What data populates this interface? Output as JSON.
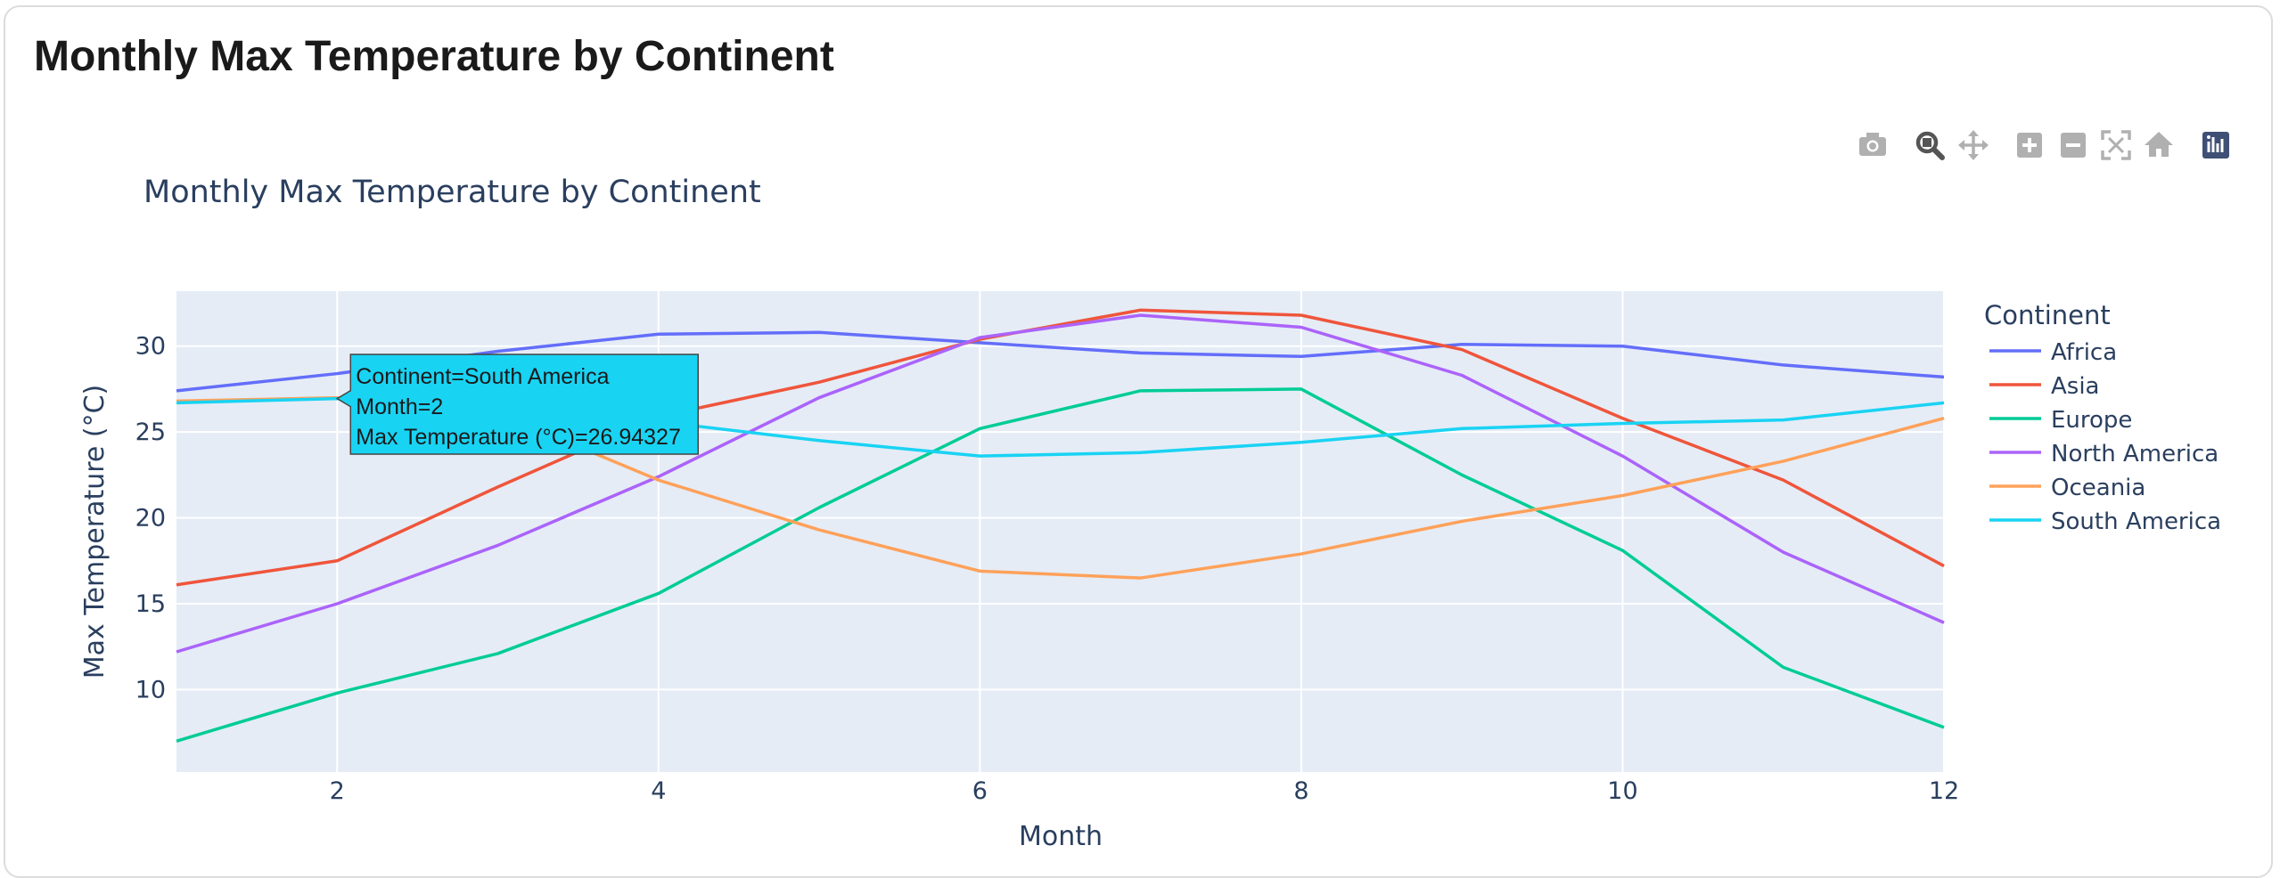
{
  "page": {
    "title": "Monthly Max Temperature by Continent"
  },
  "toolbar": {
    "buttons": [
      {
        "name": "camera-icon",
        "label": "Download plot as a png"
      },
      {
        "name": "zoom-icon",
        "label": "Zoom"
      },
      {
        "name": "pan-icon",
        "label": "Pan"
      },
      {
        "name": "zoom-in-icon",
        "label": "Zoom in"
      },
      {
        "name": "zoom-out-icon",
        "label": "Zoom out"
      },
      {
        "name": "autoscale-icon",
        "label": "Autoscale"
      },
      {
        "name": "reset-axes-icon",
        "label": "Reset axes"
      },
      {
        "name": "plotly-logo-icon",
        "label": "Produced with Plotly"
      }
    ]
  },
  "chart_data": {
    "type": "line",
    "title": "Monthly Max Temperature by Continent",
    "xlabel": "Month",
    "ylabel": "Max Temperature (°C)",
    "xlim": [
      1,
      12
    ],
    "ylim": [
      5.2,
      33.2
    ],
    "xticks": [
      2,
      4,
      6,
      8,
      10,
      12
    ],
    "yticks": [
      10,
      15,
      20,
      25,
      30
    ],
    "grid": true,
    "legend": {
      "title": "Continent",
      "placement": "right"
    },
    "x": [
      1,
      2,
      3,
      4,
      5,
      6,
      7,
      8,
      9,
      10,
      11,
      12
    ],
    "series": [
      {
        "name": "Africa",
        "color": "#636efa",
        "values": [
          27.4,
          28.4,
          29.7,
          30.7,
          30.8,
          30.2,
          29.6,
          29.4,
          30.1,
          30.0,
          28.9,
          28.2
        ]
      },
      {
        "name": "Asia",
        "color": "#ef553b",
        "values": [
          16.1,
          17.5,
          21.8,
          25.9,
          27.9,
          30.4,
          32.1,
          31.8,
          29.8,
          25.8,
          22.2,
          17.2
        ]
      },
      {
        "name": "Europe",
        "color": "#00cc96",
        "values": [
          7.0,
          9.8,
          12.1,
          15.6,
          20.6,
          25.2,
          27.4,
          27.5,
          22.5,
          18.1,
          11.3,
          7.8
        ]
      },
      {
        "name": "North America",
        "color": "#ab63fa",
        "values": [
          12.2,
          15.0,
          18.4,
          22.4,
          27.0,
          30.5,
          31.8,
          31.1,
          28.3,
          23.6,
          18.0,
          13.9
        ]
      },
      {
        "name": "Oceania",
        "color": "#ffa15a",
        "values": [
          26.8,
          27.0,
          26.1,
          22.2,
          19.3,
          16.9,
          16.5,
          17.9,
          19.8,
          21.3,
          23.3,
          25.8
        ]
      },
      {
        "name": "South America",
        "color": "#19d3f3",
        "values": [
          26.7,
          26.94327,
          26.2,
          25.6,
          24.5,
          23.6,
          23.8,
          24.4,
          25.2,
          25.5,
          25.7,
          26.7
        ]
      }
    ],
    "tooltip": {
      "series": "South America",
      "x": 2,
      "lines": [
        "Continent=South America",
        "Month=2",
        "Max Temperature (°C)=26.94327"
      ]
    }
  }
}
